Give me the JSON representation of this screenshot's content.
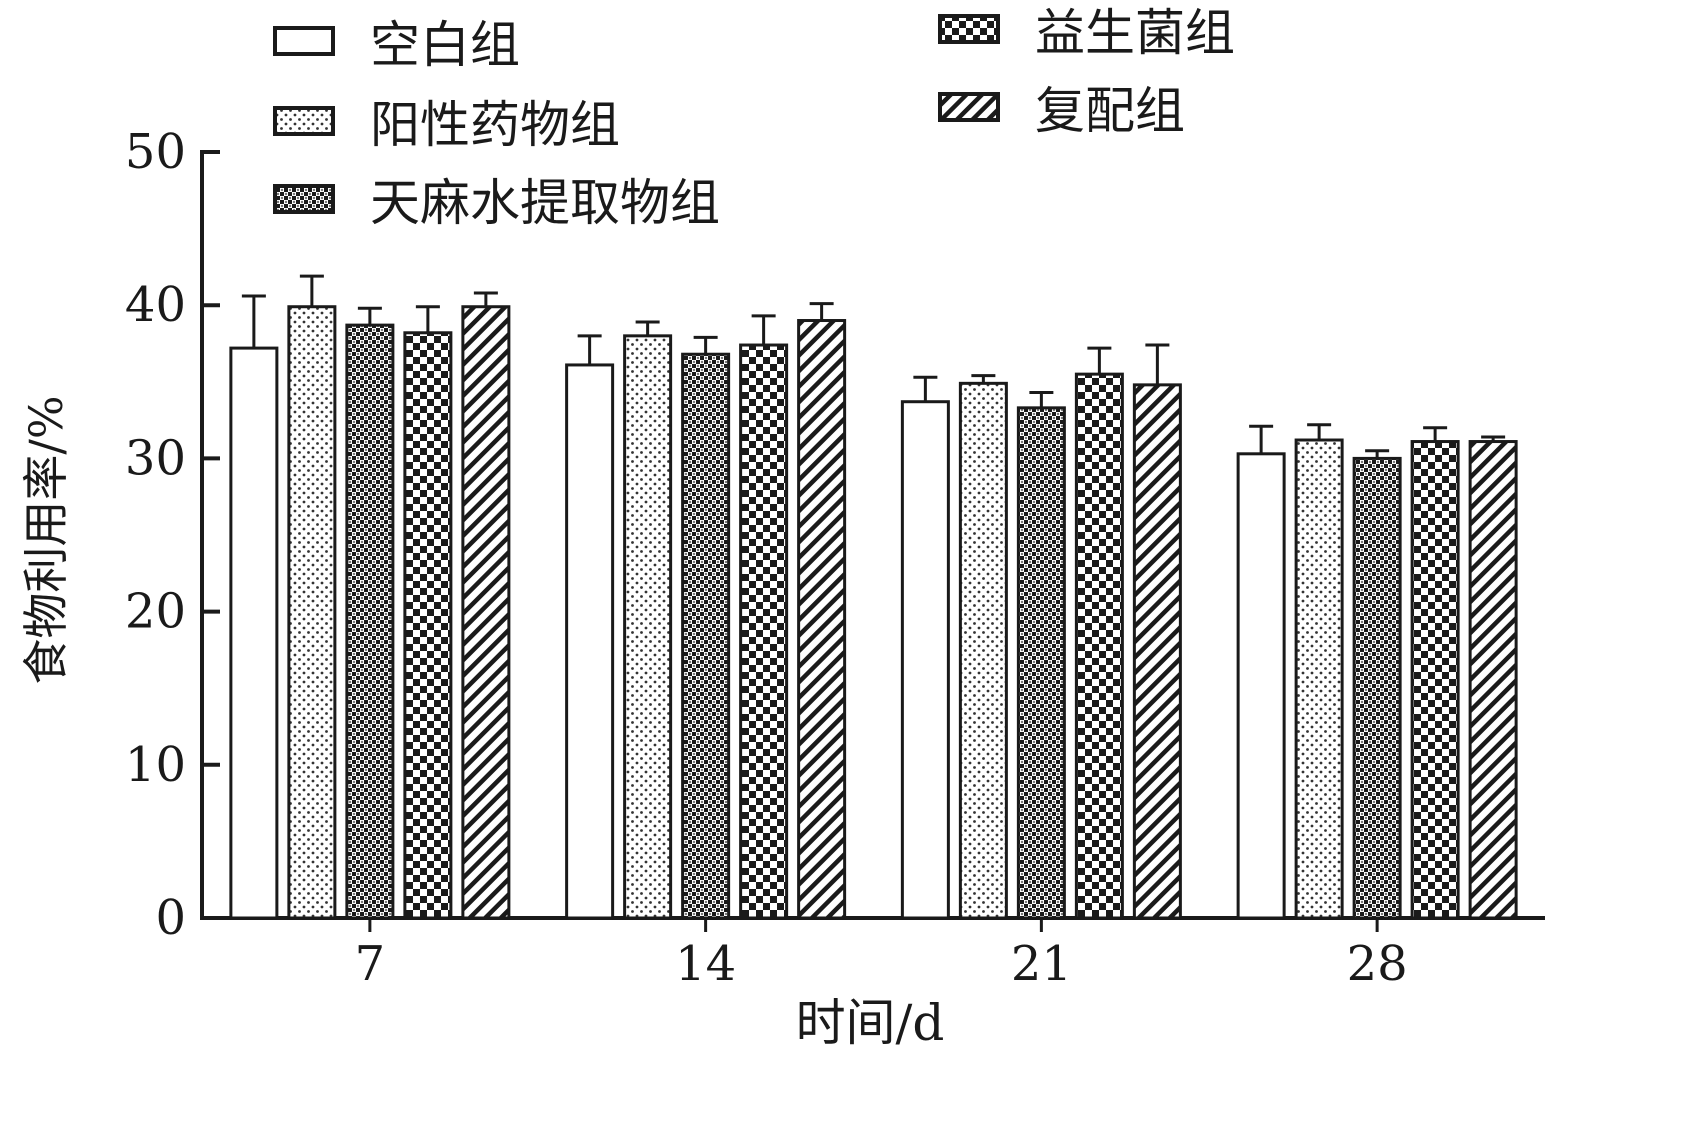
{
  "chart_data": {
    "type": "bar",
    "xlabel": "时间/d",
    "ylabel": "食物利用率/%",
    "ylim": [
      0,
      50
    ],
    "yticks": [
      0,
      10,
      20,
      30,
      40,
      50
    ],
    "categories": [
      "7",
      "14",
      "21",
      "28"
    ],
    "series": [
      {
        "name": "空白组",
        "pattern": "blank",
        "values": [
          37.2,
          36.1,
          33.7,
          30.3
        ],
        "errors": [
          3.4,
          1.9,
          1.6,
          1.8
        ]
      },
      {
        "name": "阳性药物组",
        "pattern": "dots",
        "values": [
          39.9,
          38.0,
          34.9,
          31.2
        ],
        "errors": [
          2.0,
          0.9,
          0.5,
          1.0
        ]
      },
      {
        "name": "天麻水提取物组",
        "pattern": "dense-check",
        "values": [
          38.7,
          36.8,
          33.3,
          30.0
        ],
        "errors": [
          1.1,
          1.1,
          1.0,
          0.5
        ]
      },
      {
        "name": "益生菌组",
        "pattern": "checker",
        "values": [
          38.2,
          37.4,
          35.5,
          31.1
        ],
        "errors": [
          1.7,
          1.9,
          1.7,
          0.9
        ]
      },
      {
        "name": "复配组",
        "pattern": "hatch",
        "values": [
          39.9,
          39.0,
          34.8,
          31.1
        ],
        "errors": [
          0.9,
          1.1,
          2.6,
          0.3
        ]
      }
    ],
    "legend_position": "top",
    "grid": false
  }
}
